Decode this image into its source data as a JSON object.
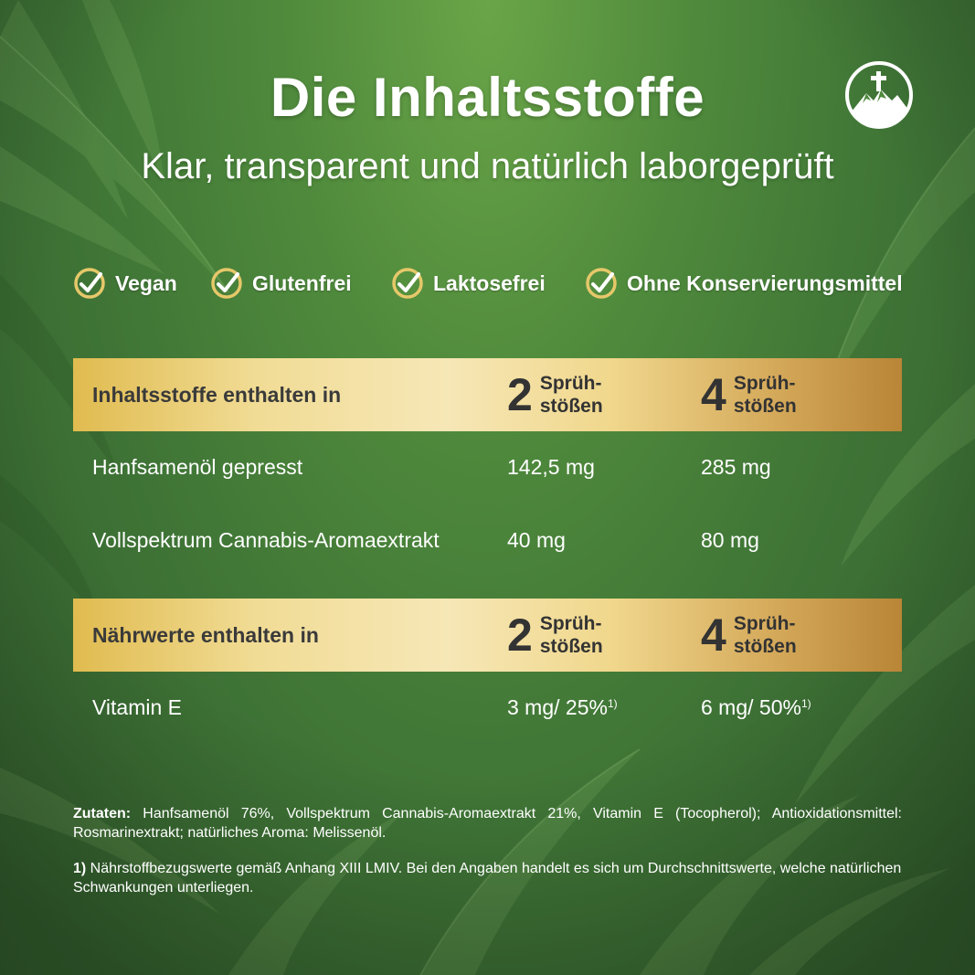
{
  "header": {
    "title": "Die Inhaltsstoffe",
    "subtitle": "Klar, transparent und natürlich laborgeprüft",
    "logo_icon": "mountain-cross-icon"
  },
  "badges": [
    {
      "label": "Vegan",
      "icon": "leaf-check-icon"
    },
    {
      "label": "Glutenfrei",
      "icon": "leaf-check-icon"
    },
    {
      "label": "Laktosefrei",
      "icon": "leaf-check-icon"
    },
    {
      "label": "Ohne Konservierungsmittel",
      "icon": "leaf-check-icon"
    }
  ],
  "table1": {
    "header": "Inhaltsstoffe enthalten in",
    "col1": {
      "num": "2",
      "unit1": "Sprüh-",
      "unit2": "stößen"
    },
    "col2": {
      "num": "4",
      "unit1": "Sprüh-",
      "unit2": "stößen"
    },
    "rows": [
      {
        "name": "Hanfsamenöl gepresst",
        "v2": "142,5 mg",
        "v4": "285 mg"
      },
      {
        "name": "Vollspektrum Cannabis-Aromaextrakt",
        "v2": "40 mg",
        "v4": "80 mg"
      }
    ]
  },
  "table2": {
    "header": "Nährwerte enthalten in",
    "col1": {
      "num": "2",
      "unit1": "Sprüh-",
      "unit2": "stößen"
    },
    "col2": {
      "num": "4",
      "unit1": "Sprüh-",
      "unit2": "stößen"
    },
    "rows": [
      {
        "name": "Vitamin E",
        "v2": "3 mg/ 25%",
        "v4": "6 mg/ 50%",
        "sup": "1)"
      }
    ]
  },
  "footer": {
    "zutaten_label": "Zutaten:",
    "zutaten_text": " Hanfsamenöl 76%, Vollspektrum Cannabis-Aromaextrakt 21%, Vitamin E (Tocopherol); Antioxidationsmittel: Rosmarinextrakt; natürliches Aroma: Melissenöl.",
    "footnote_label": "1)",
    "footnote_text": " Nährstoffbezugswerte gemäß Anhang XIII LMIV. Bei den Angaben handelt es sich um Durchschnittswerte, welche natürlichen Schwankungen unterliegen."
  },
  "colors": {
    "background": "#4f8a3c",
    "gold_light": "#f6e7b6",
    "gold_dark": "#b98537",
    "text_dark": "#333333"
  }
}
